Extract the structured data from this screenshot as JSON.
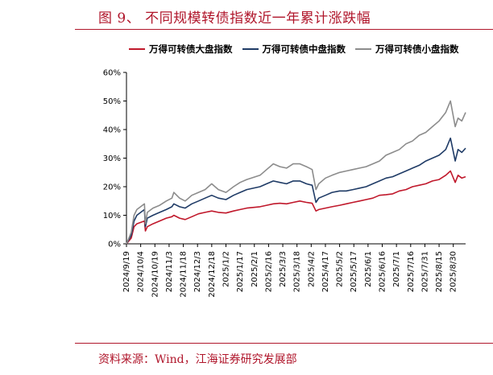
{
  "figure": {
    "title": "图 9、 不同规模转债指数近一年累计涨跌幅",
    "source": "资料来源：Wind，江海证券研究发展部"
  },
  "chart_data": {
    "type": "line",
    "title": "",
    "xlabel": "",
    "ylabel": "",
    "ylim": [
      0,
      60
    ],
    "y_ticks": [
      "0%",
      "10%",
      "20%",
      "30%",
      "40%",
      "50%",
      "60%"
    ],
    "x_tick_labels": [
      "2024/9/19",
      "2024/10/4",
      "2024/10/19",
      "2024/11/3",
      "2024/11/18",
      "2024/12/3",
      "2024/12/18",
      "2025/1/2",
      "2025/1/17",
      "2025/2/1",
      "2025/2/16",
      "2025/3/3",
      "2025/3/18",
      "2025/4/2",
      "2025/4/17",
      "2025/5/2",
      "2025/5/17",
      "2025/6/1",
      "2025/6/16",
      "2025/7/1",
      "2025/7/16",
      "2025/7/31",
      "2025/8/15",
      "2025/8/30"
    ],
    "x_range": [
      "2024/9/19",
      "2025/9/12"
    ],
    "grid": false,
    "legend_position": "top",
    "x": [
      "2024/9/19",
      "2024/9/24",
      "2024/9/27",
      "2024/9/30",
      "2024/10/8",
      "2024/10/9",
      "2024/10/11",
      "2024/10/17",
      "2024/10/24",
      "2024/10/31",
      "2024/11/6",
      "2024/11/8",
      "2024/11/14",
      "2024/11/20",
      "2024/11/27",
      "2024/12/4",
      "2024/12/11",
      "2024/12/18",
      "2024/12/25",
      "2025/1/2",
      "2025/1/10",
      "2025/1/17",
      "2025/1/24",
      "2025/2/7",
      "2025/2/14",
      "2025/2/21",
      "2025/2/28",
      "2025/3/7",
      "2025/3/14",
      "2025/3/21",
      "2025/3/28",
      "2025/4/3",
      "2025/4/7",
      "2025/4/10",
      "2025/4/17",
      "2025/4/24",
      "2025/5/2",
      "2025/5/9",
      "2025/5/16",
      "2025/5/23",
      "2025/5/30",
      "2025/6/6",
      "2025/6/13",
      "2025/6/20",
      "2025/6/27",
      "2025/7/4",
      "2025/7/11",
      "2025/7/18",
      "2025/7/25",
      "2025/8/1",
      "2025/8/8",
      "2025/8/15",
      "2025/8/22",
      "2025/8/27",
      "2025/9/1",
      "2025/9/4",
      "2025/9/8",
      "2025/9/12"
    ],
    "series": [
      {
        "name": "万得可转债大盘指数",
        "color": "#c0182b",
        "values": [
          0,
          2,
          6,
          7,
          8,
          4.5,
          6,
          7,
          8,
          9,
          9.5,
          10,
          9,
          8.5,
          9.5,
          10.5,
          11,
          11.5,
          11,
          10.8,
          11.5,
          12,
          12.5,
          13,
          13.5,
          14,
          14.2,
          14,
          14.5,
          15,
          14.5,
          14.2,
          11.5,
          12,
          12.5,
          13,
          13.5,
          14,
          14.5,
          15,
          15.5,
          16,
          17,
          17.2,
          17.5,
          18.5,
          19,
          20,
          20.5,
          21,
          22,
          22.5,
          24,
          25.5,
          21.5,
          24,
          23,
          23.5
        ]
      },
      {
        "name": "万得可转债中盘指数",
        "color": "#1f3b66",
        "values": [
          0,
          3,
          8,
          10,
          12,
          6,
          9,
          10,
          11,
          12,
          13,
          14,
          13,
          12.5,
          14,
          15,
          16,
          17,
          16,
          15.5,
          17,
          18,
          19,
          20,
          21,
          22,
          21.5,
          21,
          22,
          22,
          21,
          20.5,
          14.5,
          16,
          17,
          18,
          18.5,
          18.5,
          19,
          19.5,
          20,
          21,
          22,
          23,
          23.5,
          24.5,
          25.5,
          26.5,
          27.5,
          29,
          30,
          31,
          33,
          37,
          29,
          33,
          32,
          33.5
        ]
      },
      {
        "name": "万得可转债小盘指数",
        "color": "#8c8c8c",
        "values": [
          0,
          4,
          10,
          12,
          14,
          7,
          11,
          12.5,
          13.5,
          15,
          16,
          18,
          16,
          15,
          17,
          18,
          19,
          21,
          19,
          18,
          20,
          21.5,
          22.5,
          24,
          26,
          28,
          27,
          26.5,
          28,
          28,
          27,
          26,
          19,
          21,
          23,
          24,
          25,
          25.5,
          26,
          26.5,
          27,
          28,
          29,
          31,
          32,
          33,
          35,
          36,
          38,
          39,
          41,
          43,
          46,
          50,
          41,
          44,
          43,
          46
        ]
      }
    ]
  }
}
